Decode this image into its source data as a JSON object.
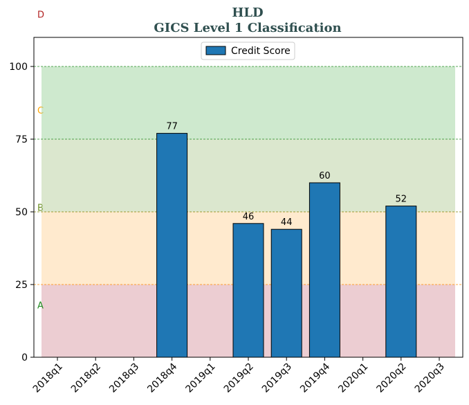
{
  "chart_data": {
    "type": "bar",
    "title": "HLD",
    "subtitle": "GICS Level 1 Classification",
    "categories": [
      "2018q1",
      "2018q2",
      "2018q3",
      "2018q4",
      "2019q1",
      "2019q2",
      "2019q3",
      "2019q4",
      "2020q1",
      "2020q2",
      "2020q3"
    ],
    "series": [
      {
        "name": "Credit Score",
        "color": "#1f77b4",
        "values": [
          null,
          null,
          null,
          77,
          null,
          46,
          44,
          60,
          null,
          52,
          null
        ]
      }
    ],
    "data_labels": [
      "",
      "",
      "",
      "77",
      "",
      "46",
      "44",
      "60",
      "",
      "52",
      ""
    ],
    "ylim": [
      0,
      110
    ],
    "yticks": [
      0,
      25,
      50,
      75,
      100
    ],
    "ytick_labels": [
      "0",
      "25",
      "50",
      "75",
      "100"
    ],
    "legend": "top-center",
    "grid": false,
    "bands": [
      {
        "label": "A",
        "from": 0,
        "to": 25,
        "fill": "#d99ca5",
        "line": "#a52a2a",
        "label_color": "#228b22",
        "label_y": 18
      },
      {
        "label": "B",
        "from": 25,
        "to": 50,
        "fill": "#ffd59e",
        "line": "#ff8c00",
        "label_color": "#6b8e23",
        "label_y": 51.5
      },
      {
        "label": "C",
        "from": 50,
        "to": 75,
        "fill": "#b8cf9e",
        "line": "#808000",
        "label_color": "#ffa500",
        "label_y": 85
      },
      {
        "label": "D",
        "from": 75,
        "to": 100,
        "fill": "#9ed39e",
        "line": "#228b22",
        "label_color": "#b22222",
        "label_y": 118
      }
    ]
  }
}
